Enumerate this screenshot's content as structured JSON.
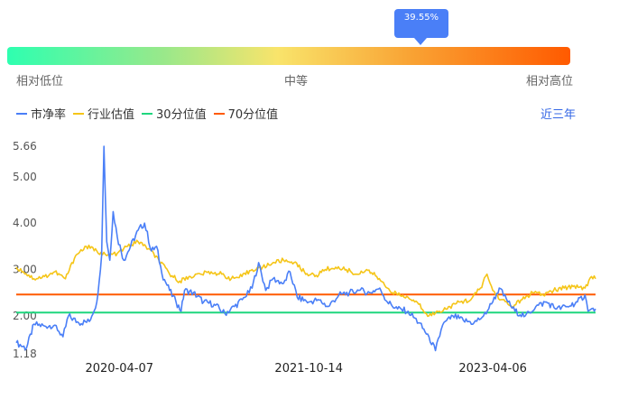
{
  "gauge": {
    "value_label": "39.55%",
    "value": 39.55,
    "low_label": "相对低位",
    "mid_label": "中等",
    "high_label": "相对高位",
    "colors": [
      "#2effb0",
      "#f9e46b",
      "#ff5a00"
    ]
  },
  "legend": {
    "items": [
      {
        "label": "市净率",
        "color": "#4a7ff7"
      },
      {
        "label": "行业估值",
        "color": "#f5c518"
      },
      {
        "label": "30分位值",
        "color": "#1fd67e"
      },
      {
        "label": "70分位值",
        "color": "#ff5a00"
      }
    ]
  },
  "range_selector": {
    "label": "近三年"
  },
  "chart_data": {
    "type": "line",
    "y_ticks": [
      "5.66",
      "5.00",
      "4.00",
      "3.00",
      "2.00",
      "1.18"
    ],
    "ylim": [
      1.18,
      5.66
    ],
    "x_ticks": [
      "2020-04-07",
      "2021-10-14",
      "2023-04-06"
    ],
    "x_tick_dates": [
      "2020-04-07",
      "2021-10-14",
      "2023-04-06"
    ],
    "x_range": [
      "2019-06-10",
      "2024-02-01"
    ],
    "series": [
      {
        "name": "市净率",
        "color": "#4a7ff7",
        "points": [
          [
            "2019-06-10",
            1.42
          ],
          [
            "2019-07-10",
            1.3
          ],
          [
            "2019-08-01",
            1.82
          ],
          [
            "2019-09-01",
            1.78
          ],
          [
            "2019-10-01",
            1.8
          ],
          [
            "2019-10-25",
            1.55
          ],
          [
            "2019-11-10",
            2.0
          ],
          [
            "2019-12-10",
            1.85
          ],
          [
            "2020-01-10",
            1.88
          ],
          [
            "2020-02-01",
            2.3
          ],
          [
            "2020-02-15",
            3.3
          ],
          [
            "2020-02-22",
            5.66
          ],
          [
            "2020-03-01",
            3.6
          ],
          [
            "2020-03-10",
            3.2
          ],
          [
            "2020-03-20",
            4.25
          ],
          [
            "2020-04-01",
            3.7
          ],
          [
            "2020-04-20",
            3.2
          ],
          [
            "2020-05-10",
            3.5
          ],
          [
            "2020-06-01",
            3.85
          ],
          [
            "2020-06-20",
            4.0
          ],
          [
            "2020-07-10",
            3.4
          ],
          [
            "2020-07-25",
            3.5
          ],
          [
            "2020-08-10",
            2.9
          ],
          [
            "2020-09-01",
            2.55
          ],
          [
            "2020-09-20",
            2.3
          ],
          [
            "2020-10-05",
            2.1
          ],
          [
            "2020-10-15",
            2.55
          ],
          [
            "2020-11-10",
            2.5
          ],
          [
            "2020-12-10",
            2.3
          ],
          [
            "2021-01-10",
            2.25
          ],
          [
            "2021-02-10",
            2.05
          ],
          [
            "2021-03-10",
            2.2
          ],
          [
            "2021-04-10",
            2.4
          ],
          [
            "2021-05-01",
            2.6
          ],
          [
            "2021-05-20",
            3.15
          ],
          [
            "2021-06-10",
            2.55
          ],
          [
            "2021-07-01",
            2.8
          ],
          [
            "2021-08-01",
            2.7
          ],
          [
            "2021-08-20",
            2.95
          ],
          [
            "2021-09-10",
            2.4
          ],
          [
            "2021-10-14",
            2.3
          ],
          [
            "2021-11-10",
            2.35
          ],
          [
            "2021-12-10",
            2.2
          ],
          [
            "2022-01-10",
            2.45
          ],
          [
            "2022-02-10",
            2.5
          ],
          [
            "2022-03-10",
            2.55
          ],
          [
            "2022-04-10",
            2.5
          ],
          [
            "2022-05-10",
            2.6
          ],
          [
            "2022-06-01",
            2.3
          ],
          [
            "2022-07-01",
            2.15
          ],
          [
            "2022-08-01",
            2.1
          ],
          [
            "2022-09-01",
            1.85
          ],
          [
            "2022-10-01",
            1.55
          ],
          [
            "2022-10-20",
            1.25
          ],
          [
            "2022-11-10",
            1.8
          ],
          [
            "2022-12-10",
            2.0
          ],
          [
            "2023-01-10",
            1.9
          ],
          [
            "2023-02-10",
            1.85
          ],
          [
            "2023-03-10",
            2.0
          ],
          [
            "2023-04-06",
            2.3
          ],
          [
            "2023-04-25",
            2.6
          ],
          [
            "2023-05-20",
            2.3
          ],
          [
            "2023-06-10",
            2.1
          ],
          [
            "2023-07-10",
            2.0
          ],
          [
            "2023-08-10",
            2.2
          ],
          [
            "2023-09-10",
            2.3
          ],
          [
            "2023-10-10",
            2.15
          ],
          [
            "2023-11-10",
            2.2
          ],
          [
            "2023-12-10",
            2.3
          ],
          [
            "2024-01-01",
            2.45
          ],
          [
            "2024-01-10",
            2.1
          ],
          [
            "2024-02-01",
            2.15
          ]
        ]
      },
      {
        "name": "行业估值",
        "color": "#f5c518",
        "points": [
          [
            "2019-06-10",
            3.05
          ],
          [
            "2019-07-01",
            2.95
          ],
          [
            "2019-08-01",
            2.8
          ],
          [
            "2019-09-01",
            2.85
          ],
          [
            "2019-10-01",
            2.95
          ],
          [
            "2019-11-01",
            2.8
          ],
          [
            "2019-12-01",
            3.3
          ],
          [
            "2020-01-01",
            3.5
          ],
          [
            "2020-02-01",
            3.4
          ],
          [
            "2020-03-01",
            3.3
          ],
          [
            "2020-04-01",
            3.35
          ],
          [
            "2020-05-01",
            3.5
          ],
          [
            "2020-06-01",
            3.6
          ],
          [
            "2020-07-01",
            3.45
          ],
          [
            "2020-08-01",
            3.2
          ],
          [
            "2020-09-01",
            2.9
          ],
          [
            "2020-10-01",
            2.75
          ],
          [
            "2020-11-01",
            2.85
          ],
          [
            "2020-12-01",
            2.9
          ],
          [
            "2021-01-01",
            2.95
          ],
          [
            "2021-02-01",
            2.9
          ],
          [
            "2021-03-01",
            2.8
          ],
          [
            "2021-04-01",
            2.85
          ],
          [
            "2021-05-01",
            3.0
          ],
          [
            "2021-06-01",
            3.05
          ],
          [
            "2021-07-01",
            3.15
          ],
          [
            "2021-08-01",
            3.2
          ],
          [
            "2021-09-01",
            3.15
          ],
          [
            "2021-10-01",
            2.95
          ],
          [
            "2021-11-01",
            2.85
          ],
          [
            "2021-12-01",
            3.0
          ],
          [
            "2022-01-01",
            3.05
          ],
          [
            "2022-02-01",
            3.0
          ],
          [
            "2022-03-01",
            2.9
          ],
          [
            "2022-04-01",
            3.0
          ],
          [
            "2022-05-01",
            2.85
          ],
          [
            "2022-06-01",
            2.6
          ],
          [
            "2022-07-01",
            2.45
          ],
          [
            "2022-08-01",
            2.4
          ],
          [
            "2022-09-01",
            2.25
          ],
          [
            "2022-10-01",
            2.0
          ],
          [
            "2022-11-01",
            2.1
          ],
          [
            "2022-12-01",
            2.2
          ],
          [
            "2023-01-01",
            2.3
          ],
          [
            "2023-02-01",
            2.35
          ],
          [
            "2023-03-01",
            2.6
          ],
          [
            "2023-03-20",
            2.9
          ],
          [
            "2023-04-06",
            2.55
          ],
          [
            "2023-05-01",
            2.35
          ],
          [
            "2023-06-01",
            2.2
          ],
          [
            "2023-07-01",
            2.35
          ],
          [
            "2023-08-01",
            2.5
          ],
          [
            "2023-09-01",
            2.45
          ],
          [
            "2023-10-01",
            2.55
          ],
          [
            "2023-11-01",
            2.6
          ],
          [
            "2023-12-01",
            2.65
          ],
          [
            "2024-01-01",
            2.6
          ],
          [
            "2024-01-20",
            2.85
          ],
          [
            "2024-02-01",
            2.8
          ]
        ]
      },
      {
        "name": "30分位值",
        "color": "#1fd67e",
        "points": [
          [
            "2019-06-10",
            2.07
          ],
          [
            "2024-02-01",
            2.07
          ]
        ]
      },
      {
        "name": "70分位值",
        "color": "#ff5a00",
        "points": [
          [
            "2019-06-10",
            2.46
          ],
          [
            "2024-02-01",
            2.46
          ]
        ]
      }
    ]
  }
}
